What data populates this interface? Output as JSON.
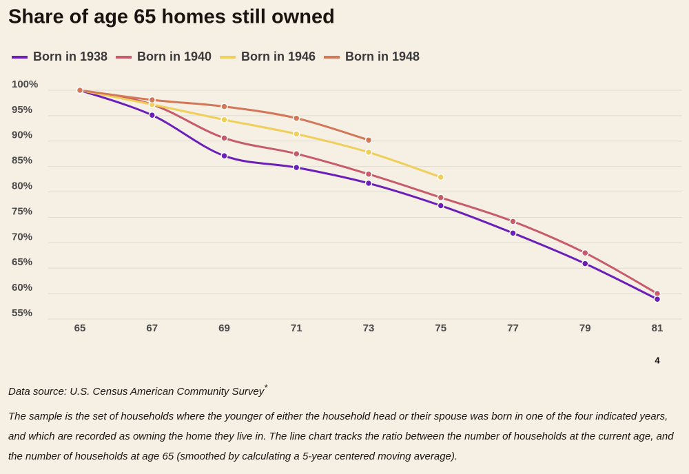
{
  "chart_data": {
    "type": "line",
    "title": "Share of age 65 homes still owned",
    "x": [
      65,
      67,
      69,
      71,
      73,
      75,
      77,
      79,
      81
    ],
    "series": [
      {
        "name": "Born in 1938",
        "color": "#6b1fb8",
        "values": [
          100,
          95.1,
          87.1,
          84.8,
          81.7,
          77.3,
          71.9,
          65.9,
          58.9
        ]
      },
      {
        "name": "Born in 1940",
        "color": "#c75b6a",
        "values": [
          100,
          97.2,
          90.6,
          87.5,
          83.5,
          78.9,
          74.2,
          68,
          60
        ]
      },
      {
        "name": "Born in 1946",
        "color": "#efcf5a",
        "values": [
          100,
          97.2,
          94.2,
          91.4,
          87.8,
          82.9,
          null,
          null,
          null
        ]
      },
      {
        "name": "Born in 1948",
        "color": "#d27757",
        "values": [
          100,
          98.1,
          96.8,
          94.5,
          90.2,
          null,
          null,
          null,
          null
        ]
      }
    ],
    "xlim": [
      65,
      81
    ],
    "xticks": [
      65,
      67,
      69,
      71,
      73,
      75,
      77,
      79,
      81
    ],
    "ylim": [
      55,
      100
    ],
    "yticks": [
      {
        "value": 100,
        "label": "100%"
      },
      {
        "value": 95,
        "label": "95%"
      },
      {
        "value": 90,
        "label": "90%"
      },
      {
        "value": 85,
        "label": "85%"
      },
      {
        "value": 80,
        "label": "80%"
      },
      {
        "value": 75,
        "label": "75%"
      },
      {
        "value": 70,
        "label": "70%"
      },
      {
        "value": 65,
        "label": "65%"
      },
      {
        "value": 60,
        "label": "60%"
      },
      {
        "value": 55,
        "label": "55%"
      }
    ],
    "grid": true,
    "legend": "top",
    "annotation": "4",
    "source": "Data source: U.S. Census American Community Survey",
    "source_mark": "*",
    "note": "The sample is the set of households where the younger of either the household head or their spouse was born in one of the four indicated years, and which are recorded as owning the home they live in. The line chart tracks the ratio between the number of households at the current age, and the number of households at age 65 (smoothed by calculating a 5-year centered moving average)."
  }
}
